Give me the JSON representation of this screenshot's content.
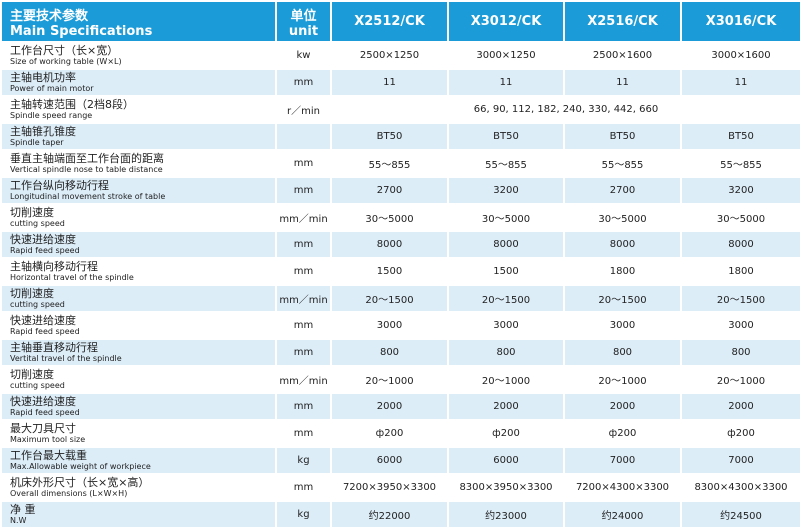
{
  "header": {
    "title_cn": "主要技术参数",
    "title_en": "Main Specifications",
    "unit_cn": "单位",
    "unit_en": "unit",
    "models": [
      "X2512/CK",
      "X3012/CK",
      "X2516/CK",
      "X3016/CK"
    ]
  },
  "rows": [
    {
      "cn": "工作台尺寸（长×宽）",
      "en": "Size of working table (W×L)",
      "unit": "kw",
      "values": [
        "2500×1250",
        "3000×1250",
        "2500×1600",
        "3000×1600"
      ]
    },
    {
      "cn": "主轴电机功率",
      "en": "Power of main motor",
      "unit": "mm",
      "values": [
        "11",
        "11",
        "11",
        "11"
      ]
    },
    {
      "cn": "主轴转速范围（2档8段）",
      "en": "Spindle speed range",
      "unit": "r／min",
      "value": "66, 90, 112, 182, 240, 330, 442, 660"
    },
    {
      "cn": "主轴锥孔锥度",
      "en": "Spindle taper",
      "values": [
        "BT50",
        "BT50",
        "BT50",
        "BT50"
      ]
    },
    {
      "cn": "垂直主轴端面至工作台面的距离",
      "en": "Vertical spindle nose to table distance",
      "unit": "mm",
      "values": [
        "55～855",
        "55～855",
        "55～855",
        "55～855"
      ]
    },
    {
      "cn": "工作台纵向移动行程",
      "en": "Longitudinal movement stroke of table",
      "unit": "mm",
      "values": [
        "2700",
        "3200",
        "2700",
        "3200"
      ]
    },
    {
      "cn": "切削速度",
      "en": "cutting speed",
      "unit": "mm／min",
      "values": [
        "30～5000",
        "30～5000",
        "30～5000",
        "30～5000"
      ]
    },
    {
      "cn": "快速进给速度",
      "en": "Rapid feed speed",
      "unit": "mm",
      "values": [
        "8000",
        "8000",
        "8000",
        "8000"
      ]
    },
    {
      "cn": "主轴横向移动行程",
      "en": "Horizontal travel of the spindle",
      "unit": "mm",
      "values": [
        "1500",
        "1500",
        "1800",
        "1800"
      ]
    },
    {
      "cn": "切削速度",
      "en": "cutting speed",
      "unit": "mm／min",
      "values": [
        "20～1500",
        "20～1500",
        "20～1500",
        "20～1500"
      ]
    },
    {
      "cn": "快速进给速度",
      "en": "Rapid feed speed",
      "unit": "mm",
      "values": [
        "3000",
        "3000",
        "3000",
        "3000"
      ]
    },
    {
      "cn": "主轴垂直移动行程",
      "en": "Vertital travel of the spindle",
      "unit": "mm",
      "values": [
        "800",
        "800",
        "800",
        "800"
      ]
    },
    {
      "cn": "切削速度",
      "en": "cutting speed",
      "unit": "mm／min",
      "values": [
        "20～1000",
        "20～1000",
        "20～1000",
        "20～1000"
      ]
    },
    {
      "cn": "快速进给速度",
      "en": "Rapid feed speed",
      "unit": "mm",
      "values": [
        "2000",
        "2000",
        "2000",
        "2000"
      ]
    },
    {
      "cn": "最大刀具尺寸",
      "en": "Maximum tool size",
      "unit": "mm",
      "values": [
        "ф200",
        "ф200",
        "ф200",
        "ф200"
      ]
    },
    {
      "cn": "工作台最大载重",
      "en": "Max.Allowable weight of workpiece",
      "unit": "kg",
      "values": [
        "6000",
        "6000",
        "7000",
        "7000"
      ]
    },
    {
      "cn": "机床外形尺寸（长×宽×高）",
      "en": "Overall dimensions (L×W×H)",
      "unit": "mm",
      "values": [
        "7200×3950×3300",
        "8300×3950×3300",
        "7200×4300×3300",
        "8300×4300×3300"
      ]
    },
    {
      "cn": "净 重",
      "en": "N.W",
      "unit": "kg",
      "values": [
        "约22000",
        "约23000",
        "约24000",
        "约24500"
      ]
    }
  ]
}
